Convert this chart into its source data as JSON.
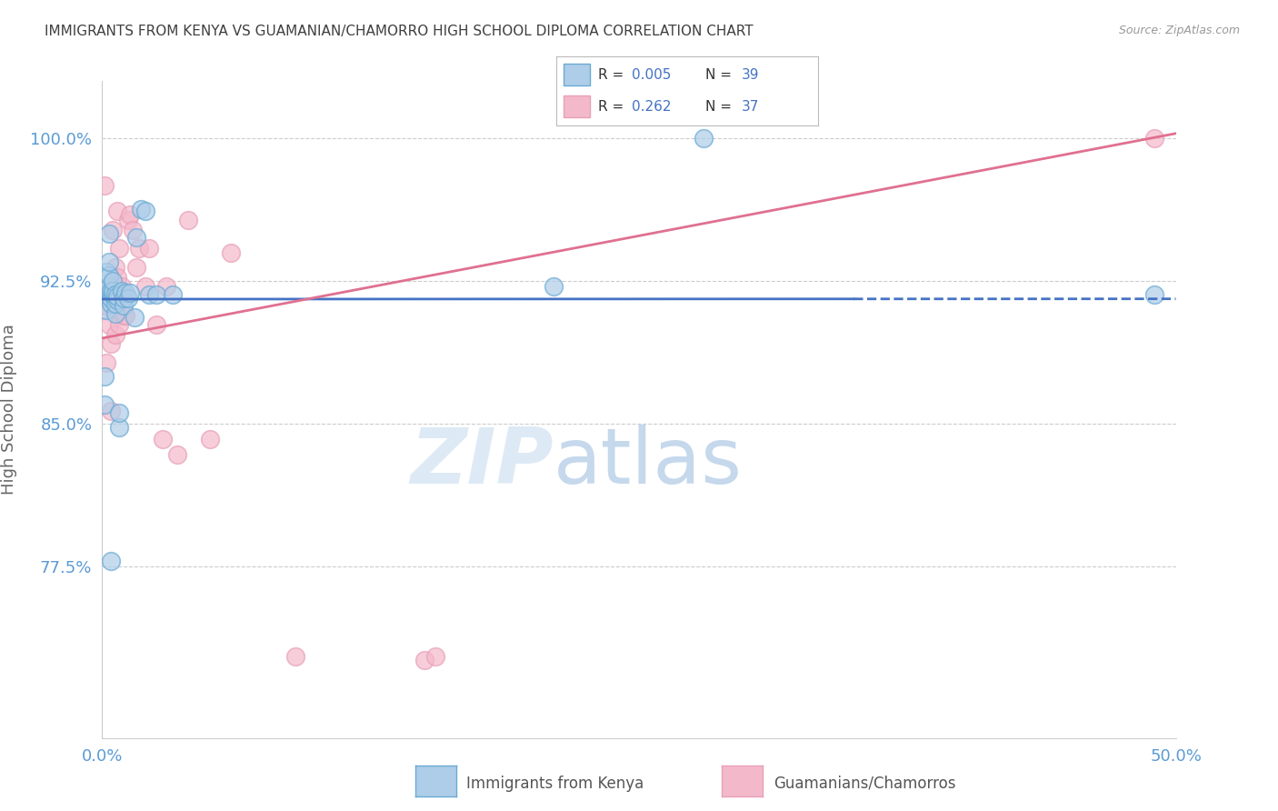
{
  "title": "IMMIGRANTS FROM KENYA VS GUAMANIAN/CHAMORRO HIGH SCHOOL DIPLOMA CORRELATION CHART",
  "source": "Source: ZipAtlas.com",
  "ylabel": "High School Diploma",
  "xlim": [
    0.0,
    0.5
  ],
  "ylim": [
    0.685,
    1.03
  ],
  "xticks": [
    0.0,
    0.1,
    0.2,
    0.3,
    0.4,
    0.5
  ],
  "xticklabels": [
    "0.0%",
    "",
    "",
    "",
    "",
    "50.0%"
  ],
  "yticks": [
    0.775,
    0.85,
    0.925,
    1.0
  ],
  "yticklabels": [
    "77.5%",
    "85.0%",
    "92.5%",
    "100.0%"
  ],
  "blue_color": "#aecde8",
  "pink_color": "#f4b8cb",
  "blue_edge_color": "#6aaad4",
  "pink_edge_color": "#e8a0b8",
  "blue_line_color": "#4472c4",
  "pink_line_color": "#e07090",
  "title_color": "#404040",
  "axis_color": "#5b9bd5",
  "blue_dots_x": [
    0.001,
    0.001,
    0.002,
    0.002,
    0.003,
    0.003,
    0.003,
    0.003,
    0.004,
    0.004,
    0.004,
    0.005,
    0.005,
    0.005,
    0.006,
    0.006,
    0.006,
    0.007,
    0.007,
    0.008,
    0.008,
    0.009,
    0.01,
    0.01,
    0.011,
    0.012,
    0.013,
    0.015,
    0.016,
    0.018,
    0.02,
    0.022,
    0.025,
    0.033,
    0.21,
    0.28,
    0.49,
    0.003,
    0.004
  ],
  "blue_dots_y": [
    0.875,
    0.86,
    0.91,
    0.93,
    0.92,
    0.922,
    0.928,
    0.935,
    0.913,
    0.916,
    0.92,
    0.918,
    0.92,
    0.925,
    0.908,
    0.913,
    0.918,
    0.915,
    0.917,
    0.848,
    0.856,
    0.92,
    0.912,
    0.916,
    0.919,
    0.916,
    0.919,
    0.906,
    0.948,
    0.963,
    0.962,
    0.918,
    0.918,
    0.918,
    0.922,
    1.0,
    0.918,
    0.95,
    0.778
  ],
  "pink_dots_x": [
    0.001,
    0.001,
    0.002,
    0.002,
    0.003,
    0.003,
    0.004,
    0.004,
    0.005,
    0.005,
    0.006,
    0.006,
    0.007,
    0.007,
    0.008,
    0.008,
    0.009,
    0.01,
    0.011,
    0.012,
    0.013,
    0.014,
    0.016,
    0.017,
    0.02,
    0.022,
    0.025,
    0.028,
    0.03,
    0.035,
    0.04,
    0.05,
    0.06,
    0.09,
    0.15,
    0.155,
    0.49
  ],
  "pink_dots_y": [
    0.912,
    0.975,
    0.882,
    0.912,
    0.902,
    0.922,
    0.857,
    0.892,
    0.912,
    0.952,
    0.897,
    0.932,
    0.927,
    0.962,
    0.902,
    0.942,
    0.922,
    0.907,
    0.907,
    0.957,
    0.96,
    0.952,
    0.932,
    0.942,
    0.922,
    0.942,
    0.902,
    0.842,
    0.922,
    0.834,
    0.957,
    0.842,
    0.94,
    0.728,
    0.726,
    0.728,
    1.0
  ],
  "blue_line_solid_end": 0.35,
  "blue_line_y_intercept": 0.9155,
  "blue_line_slope": 0.0003,
  "pink_line_y_intercept": 0.895,
  "pink_line_slope": 0.215
}
